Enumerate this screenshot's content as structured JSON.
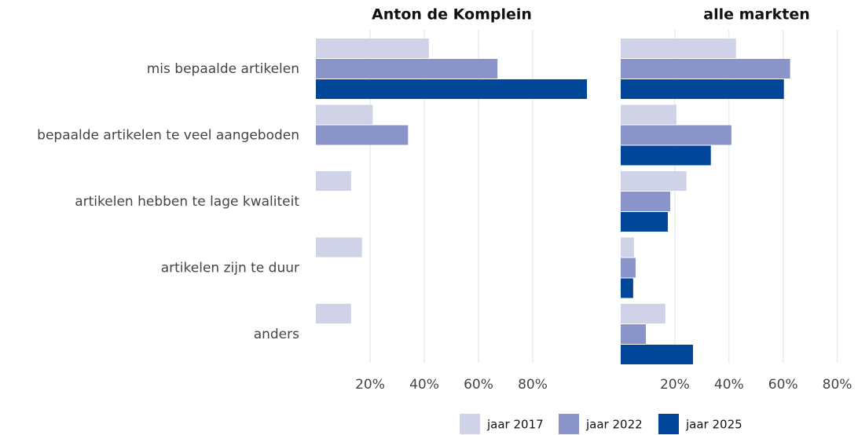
{
  "chart_data": {
    "type": "bar",
    "orientation": "horizontal",
    "categories": [
      "mis bepaalde artikelen",
      "bepaalde artikelen te veel aangeboden",
      "artikelen hebben te lage kwaliteit",
      "artikelen zijn te duur",
      "anders"
    ],
    "series": [
      {
        "name": "jaar 2017",
        "color": "#d0d2e8"
      },
      {
        "name": "jaar 2022",
        "color": "#8b94c8"
      },
      {
        "name": "jaar 2025",
        "color": "#00479a"
      }
    ],
    "grid": true,
    "legend": "bottom",
    "panels": [
      {
        "title": "Anton de Komplein",
        "xlim": [
          0,
          100
        ],
        "xticks": [
          {
            "value": 20,
            "label": "20%"
          },
          {
            "value": 40,
            "label": "40%"
          },
          {
            "value": 60,
            "label": "60%"
          },
          {
            "value": 80,
            "label": "80%"
          }
        ],
        "values": [
          [
            41.7,
            21,
            13,
            17,
            13
          ],
          [
            67,
            34,
            null,
            null,
            null
          ],
          [
            100,
            null,
            null,
            null,
            null
          ]
        ]
      },
      {
        "title": "alle markten",
        "xlim": [
          0,
          81
        ],
        "xticks": [
          {
            "value": 20,
            "label": "20%"
          },
          {
            "value": 40,
            "label": "40%"
          },
          {
            "value": 60,
            "label": "60%"
          },
          {
            "value": 80,
            "label": "80%"
          }
        ],
        "values": [
          [
            42.6,
            20.6,
            24.3,
            4.9,
            16.5
          ],
          [
            62.6,
            40.9,
            18.3,
            5.5,
            9.3
          ],
          [
            60.3,
            33.3,
            17.4,
            4.6,
            26.7
          ]
        ]
      }
    ]
  }
}
